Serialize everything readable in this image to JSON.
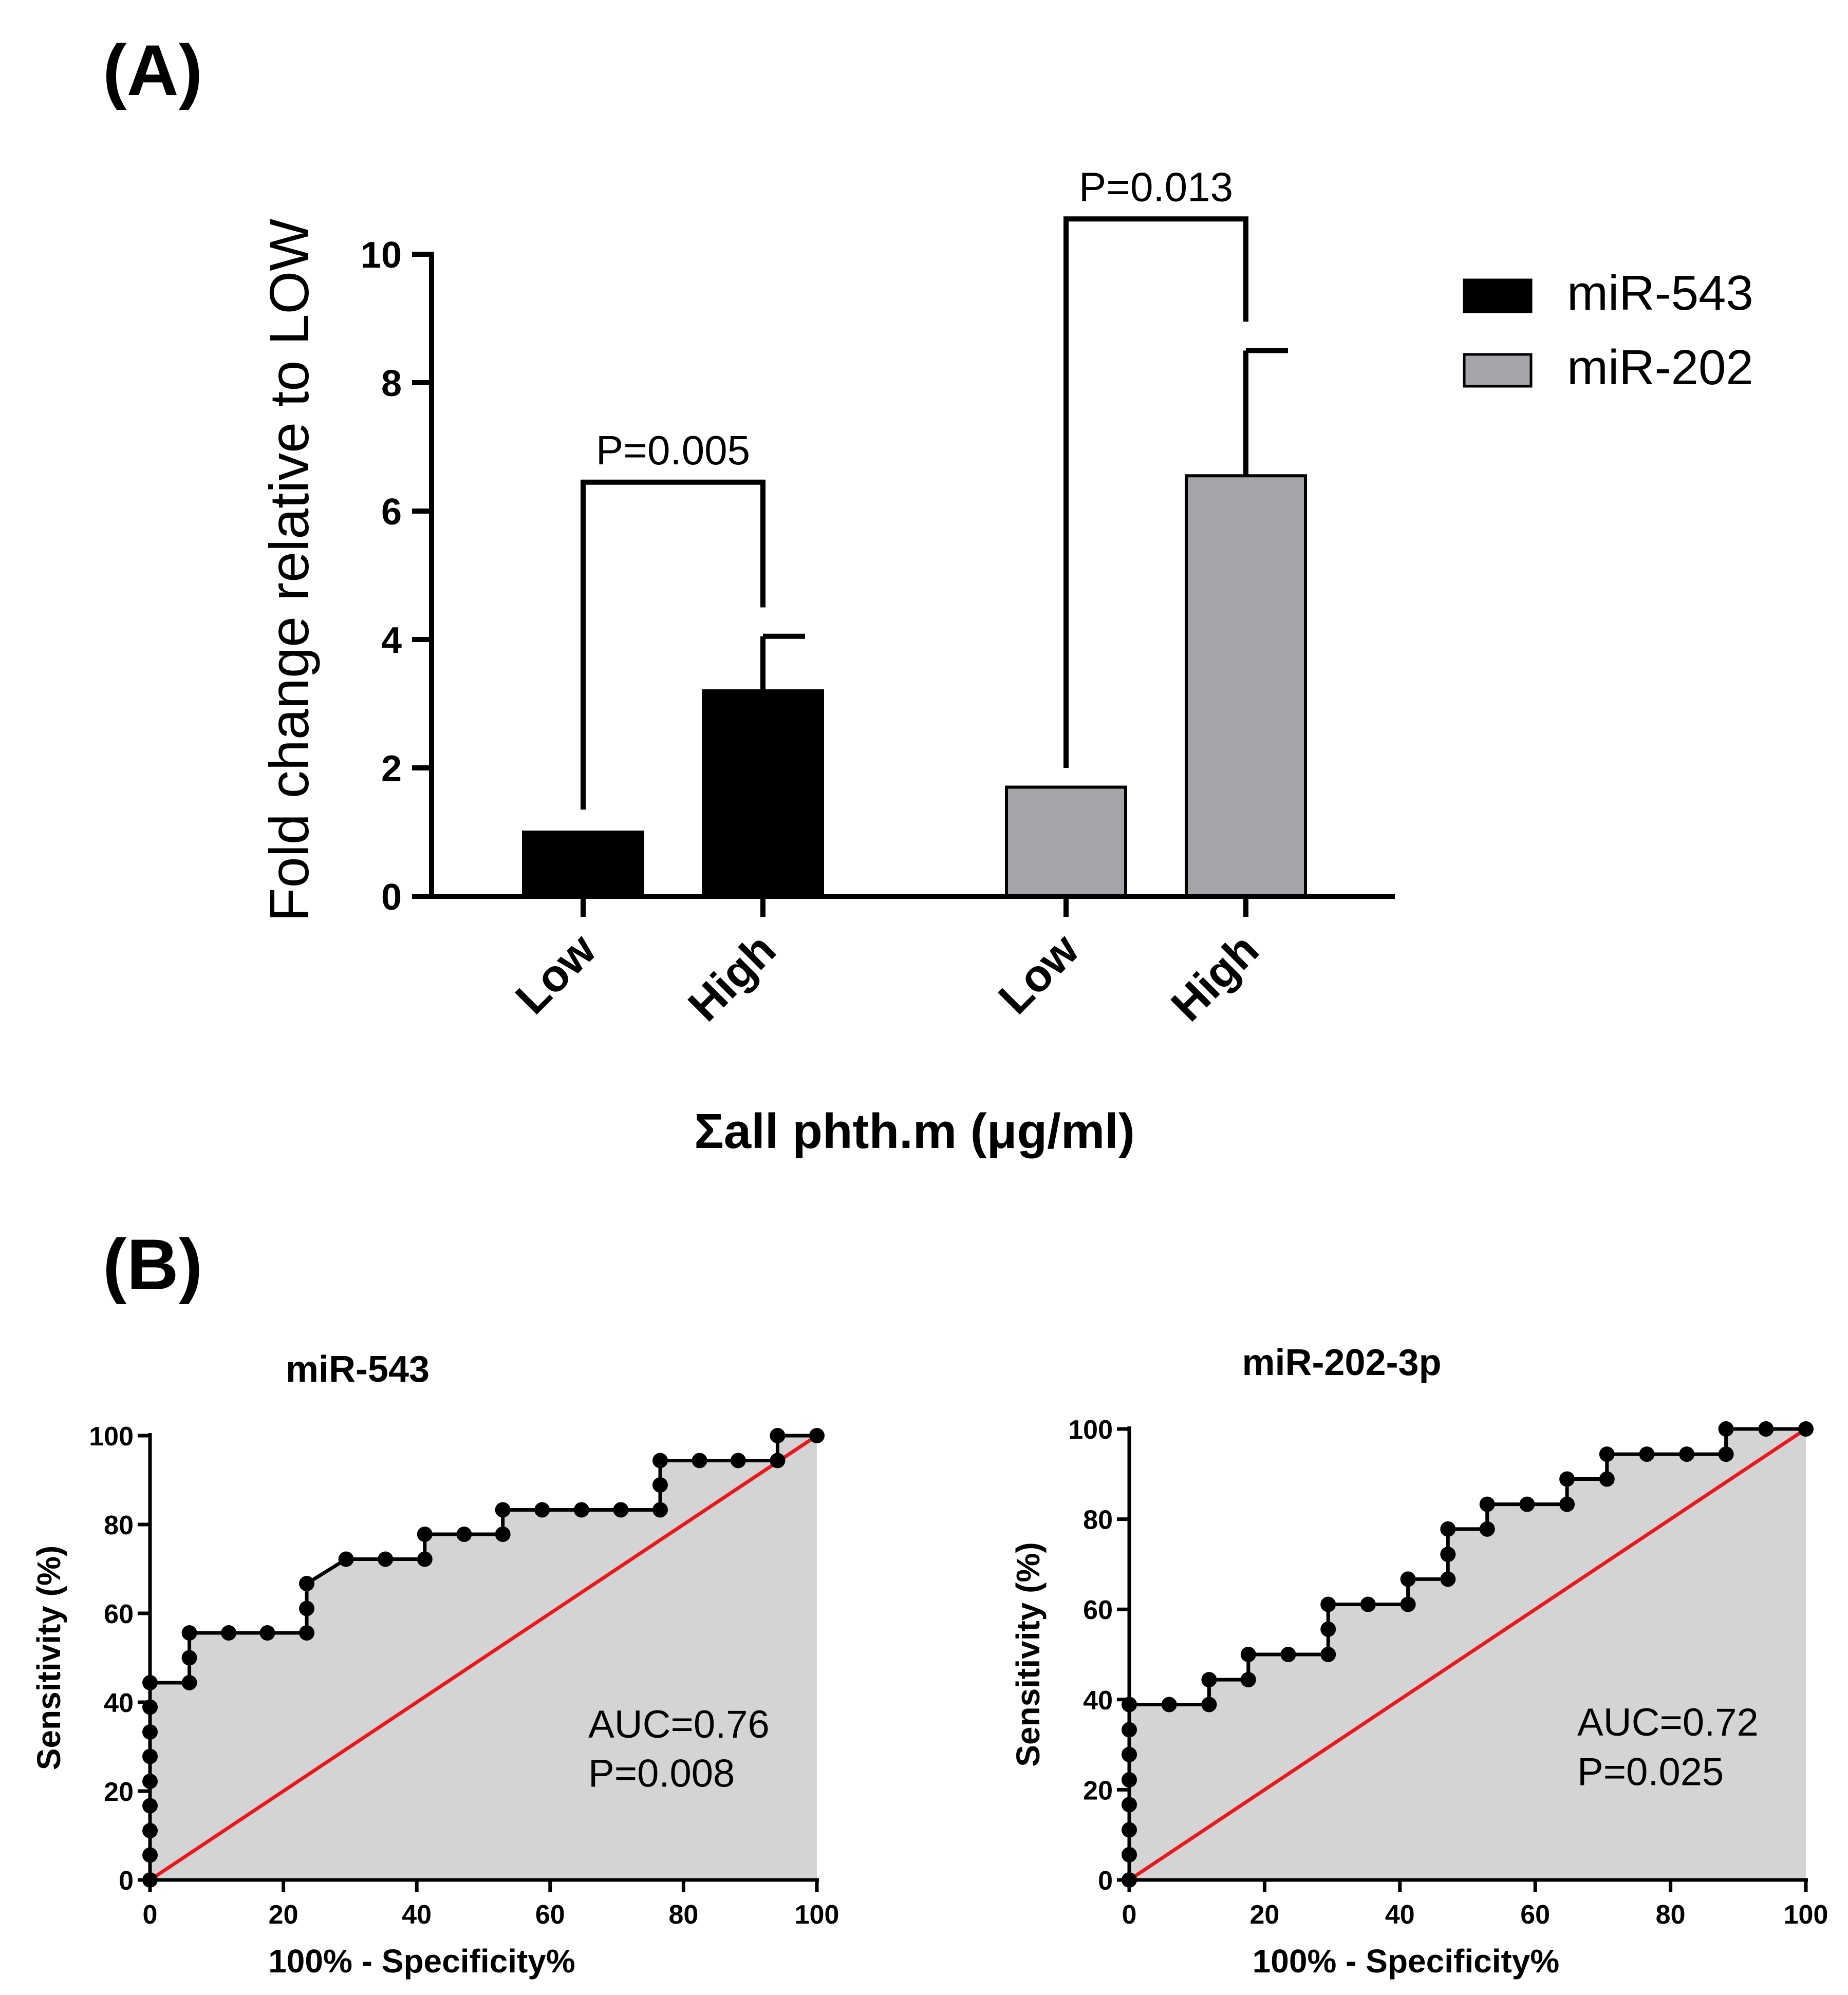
{
  "panel_labels": {
    "a": "(A)",
    "b": "(B)"
  },
  "chart_data": [
    {
      "type": "bar",
      "panel": "(A)",
      "ylabel": "Fold change relative to LOW",
      "xlabel": "Σall phth.m (μg/ml)",
      "ylim": [
        0,
        10
      ],
      "yticks": [
        0,
        2,
        4,
        6,
        8,
        10
      ],
      "groups": [
        {
          "series": "miR-543",
          "color": "#000000",
          "categories": [
            "Low",
            "High"
          ],
          "values": [
            1.0,
            3.2
          ],
          "errors": [
            0,
            0.85
          ],
          "comparison": {
            "label": "P=0.005",
            "bracket_level": 6.45,
            "left_start": 1.35,
            "right_start": 4.5
          }
        },
        {
          "series": "miR-202",
          "color": "#a6a4a9",
          "categories": [
            "Low",
            "High"
          ],
          "values": [
            1.7,
            6.55
          ],
          "errors": [
            0,
            1.95
          ],
          "comparison": {
            "label": "P=0.013",
            "bracket_level": 10.55,
            "left_start": 2.0,
            "right_start": 8.95
          }
        }
      ],
      "legend": [
        {
          "name": "miR-543",
          "color": "#000000"
        },
        {
          "name": "miR-202",
          "color": "#a6a4a9"
        }
      ]
    },
    {
      "type": "line",
      "subtype": "roc",
      "panel": "(B)",
      "title": "miR-543",
      "xlabel": "100% - Specificity%",
      "ylabel": "Sensitivity (%)",
      "xlim": [
        0,
        100
      ],
      "ylim": [
        0,
        100
      ],
      "xticks": [
        0,
        20,
        40,
        60,
        80,
        100
      ],
      "yticks": [
        0,
        20,
        40,
        60,
        80,
        100
      ],
      "auc_label": "AUC=0.76",
      "p_label": "P=0.008",
      "points": [
        [
          0,
          0
        ],
        [
          0,
          5.6
        ],
        [
          0,
          11.1
        ],
        [
          0,
          16.7
        ],
        [
          0,
          22.2
        ],
        [
          0,
          27.8
        ],
        [
          0,
          33.3
        ],
        [
          0,
          38.9
        ],
        [
          0,
          44.4
        ],
        [
          5.9,
          44.4
        ],
        [
          5.9,
          50
        ],
        [
          5.9,
          55.6
        ],
        [
          11.8,
          55.6
        ],
        [
          17.6,
          55.6
        ],
        [
          23.5,
          55.6
        ],
        [
          23.5,
          61.1
        ],
        [
          23.5,
          66.7
        ],
        [
          29.4,
          72.2
        ],
        [
          35.3,
          72.2
        ],
        [
          41.2,
          72.2
        ],
        [
          41.2,
          77.8
        ],
        [
          47.1,
          77.8
        ],
        [
          52.9,
          77.8
        ],
        [
          52.9,
          83.3
        ],
        [
          58.8,
          83.3
        ],
        [
          64.7,
          83.3
        ],
        [
          70.6,
          83.3
        ],
        [
          76.5,
          83.3
        ],
        [
          76.5,
          88.9
        ],
        [
          76.5,
          94.4
        ],
        [
          82.4,
          94.4
        ],
        [
          88.2,
          94.4
        ],
        [
          94.1,
          94.4
        ],
        [
          94.1,
          100
        ],
        [
          100,
          100
        ]
      ],
      "reference_line": {
        "from": [
          0,
          0
        ],
        "to": [
          100,
          100
        ],
        "color": "#e8191c"
      },
      "fill_color": "#d4d4d4"
    },
    {
      "type": "line",
      "subtype": "roc",
      "panel": "(B)",
      "title": "miR-202-3p",
      "xlabel": "100% - Specificity%",
      "ylabel": "Sensitivity (%)",
      "xlim": [
        0,
        100
      ],
      "ylim": [
        0,
        100
      ],
      "xticks": [
        0,
        20,
        40,
        60,
        80,
        100
      ],
      "yticks": [
        0,
        20,
        40,
        60,
        80,
        100
      ],
      "auc_label": "AUC=0.72",
      "p_label": "P=0.025",
      "points": [
        [
          0,
          0
        ],
        [
          0,
          5.6
        ],
        [
          0,
          11.1
        ],
        [
          0,
          16.7
        ],
        [
          0,
          22.2
        ],
        [
          0,
          27.8
        ],
        [
          0,
          33.3
        ],
        [
          0,
          38.9
        ],
        [
          5.9,
          38.9
        ],
        [
          11.8,
          38.9
        ],
        [
          11.8,
          44.4
        ],
        [
          17.6,
          44.4
        ],
        [
          17.6,
          50
        ],
        [
          23.5,
          50
        ],
        [
          29.4,
          50
        ],
        [
          29.4,
          55.6
        ],
        [
          29.4,
          61.1
        ],
        [
          35.3,
          61.1
        ],
        [
          41.2,
          61.1
        ],
        [
          41.2,
          66.7
        ],
        [
          47.1,
          66.7
        ],
        [
          47.1,
          72.2
        ],
        [
          47.1,
          77.8
        ],
        [
          52.9,
          77.8
        ],
        [
          52.9,
          83.3
        ],
        [
          58.8,
          83.3
        ],
        [
          64.7,
          83.3
        ],
        [
          64.7,
          88.9
        ],
        [
          70.6,
          88.9
        ],
        [
          70.6,
          94.4
        ],
        [
          76.5,
          94.4
        ],
        [
          82.4,
          94.4
        ],
        [
          88.2,
          94.4
        ],
        [
          88.2,
          100
        ],
        [
          94.1,
          100
        ],
        [
          100,
          100
        ]
      ],
      "reference_line": {
        "from": [
          0,
          0
        ],
        "to": [
          100,
          100
        ],
        "color": "#e8191c"
      },
      "fill_color": "#d4d4d4"
    }
  ]
}
